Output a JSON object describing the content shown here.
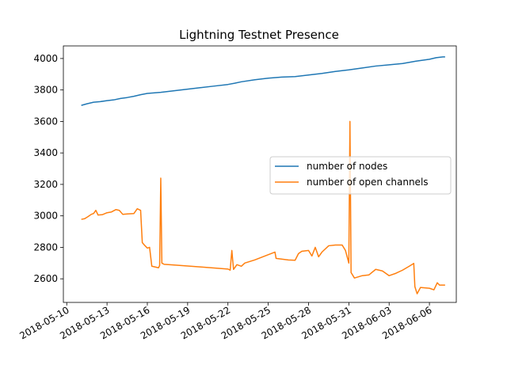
{
  "chart_data": {
    "type": "line",
    "title": "Lightning Testnet Presence",
    "xlabel": "",
    "ylabel": "",
    "x_type": "date",
    "xlim": [
      "2018-05-09 18:00",
      "2018-06-08 00:00"
    ],
    "ylim": [
      2450,
      4080
    ],
    "x_ticks": [
      "2018-05-10",
      "2018-05-13",
      "2018-05-16",
      "2018-05-19",
      "2018-05-22",
      "2018-05-25",
      "2018-05-28",
      "2018-05-31",
      "2018-06-03",
      "2018-06-06"
    ],
    "y_ticks": [
      2600,
      2800,
      3000,
      3200,
      3400,
      3600,
      3800,
      4000
    ],
    "grid": false,
    "legend_position": "center-right",
    "series": [
      {
        "name": "number of nodes",
        "color": "#1f77b4",
        "points": [
          [
            "2018-05-11 02:00",
            3702
          ],
          [
            "2018-05-11 12:00",
            3712
          ],
          [
            "2018-05-12 00:00",
            3722
          ],
          [
            "2018-05-12 12:00",
            3726
          ],
          [
            "2018-05-13 00:00",
            3732
          ],
          [
            "2018-05-13 12:00",
            3737
          ],
          [
            "2018-05-14 00:00",
            3746
          ],
          [
            "2018-05-14 12:00",
            3752
          ],
          [
            "2018-05-15 00:00",
            3760
          ],
          [
            "2018-05-15 12:00",
            3770
          ],
          [
            "2018-05-16 00:00",
            3778
          ],
          [
            "2018-05-17 00:00",
            3785
          ],
          [
            "2018-05-18 00:00",
            3795
          ],
          [
            "2018-05-19 00:00",
            3805
          ],
          [
            "2018-05-20 00:00",
            3815
          ],
          [
            "2018-05-21 00:00",
            3825
          ],
          [
            "2018-05-22 00:00",
            3835
          ],
          [
            "2018-05-22 12:00",
            3843
          ],
          [
            "2018-05-23 00:00",
            3852
          ],
          [
            "2018-05-24 00:00",
            3865
          ],
          [
            "2018-05-25 00:00",
            3875
          ],
          [
            "2018-05-26 00:00",
            3882
          ],
          [
            "2018-05-27 00:00",
            3885
          ],
          [
            "2018-05-28 00:00",
            3895
          ],
          [
            "2018-05-29 00:00",
            3905
          ],
          [
            "2018-05-30 00:00",
            3918
          ],
          [
            "2018-05-31 00:00",
            3928
          ],
          [
            "2018-06-01 00:00",
            3940
          ],
          [
            "2018-06-02 00:00",
            3952
          ],
          [
            "2018-06-03 00:00",
            3960
          ],
          [
            "2018-06-04 00:00",
            3968
          ],
          [
            "2018-06-05 00:00",
            3983
          ],
          [
            "2018-06-06 00:00",
            3995
          ],
          [
            "2018-06-06 12:00",
            4005
          ],
          [
            "2018-06-07 00:00",
            4010
          ],
          [
            "2018-06-07 04:00",
            4010
          ]
        ]
      },
      {
        "name": "number of open channels",
        "color": "#ff7f0e",
        "points": [
          [
            "2018-05-11 02:00",
            2978
          ],
          [
            "2018-05-11 08:00",
            2982
          ],
          [
            "2018-05-11 14:00",
            2995
          ],
          [
            "2018-05-11 20:00",
            3010
          ],
          [
            "2018-05-12 00:00",
            3015
          ],
          [
            "2018-05-12 04:00",
            3035
          ],
          [
            "2018-05-12 08:00",
            3005
          ],
          [
            "2018-05-12 16:00",
            3008
          ],
          [
            "2018-05-13 00:00",
            3020
          ],
          [
            "2018-05-13 08:00",
            3025
          ],
          [
            "2018-05-13 16:00",
            3040
          ],
          [
            "2018-05-13 22:00",
            3035
          ],
          [
            "2018-05-14 04:00",
            3010
          ],
          [
            "2018-05-14 12:00",
            3012
          ],
          [
            "2018-05-15 00:00",
            3015
          ],
          [
            "2018-05-15 06:00",
            3045
          ],
          [
            "2018-05-15 12:00",
            3035
          ],
          [
            "2018-05-15 15:00",
            2830
          ],
          [
            "2018-05-15 20:00",
            2810
          ],
          [
            "2018-05-16 00:00",
            2795
          ],
          [
            "2018-05-16 04:00",
            2800
          ],
          [
            "2018-05-16 08:00",
            2680
          ],
          [
            "2018-05-16 14:00",
            2675
          ],
          [
            "2018-05-16 20:00",
            2670
          ],
          [
            "2018-05-16 22:00",
            2685
          ],
          [
            "2018-05-17 00:00",
            3240
          ],
          [
            "2018-05-17 02:00",
            2700
          ],
          [
            "2018-05-17 06:00",
            2692
          ],
          [
            "2018-05-18 00:00",
            2688
          ],
          [
            "2018-05-20 00:00",
            2675
          ],
          [
            "2018-05-22 00:00",
            2662
          ],
          [
            "2018-05-22 04:00",
            2655
          ],
          [
            "2018-05-22 07:00",
            2780
          ],
          [
            "2018-05-22 10:00",
            2660
          ],
          [
            "2018-05-22 16:00",
            2690
          ],
          [
            "2018-05-23 00:00",
            2680
          ],
          [
            "2018-05-23 06:00",
            2700
          ],
          [
            "2018-05-24 00:00",
            2720
          ],
          [
            "2018-05-25 12:00",
            2770
          ],
          [
            "2018-05-25 14:00",
            2730
          ],
          [
            "2018-05-26 12:00",
            2720
          ],
          [
            "2018-05-27 00:00",
            2718
          ],
          [
            "2018-05-27 06:00",
            2760
          ],
          [
            "2018-05-27 12:00",
            2775
          ],
          [
            "2018-05-28 00:00",
            2780
          ],
          [
            "2018-05-28 06:00",
            2745
          ],
          [
            "2018-05-28 12:00",
            2800
          ],
          [
            "2018-05-28 18:00",
            2740
          ],
          [
            "2018-05-29 00:00",
            2770
          ],
          [
            "2018-05-29 12:00",
            2810
          ],
          [
            "2018-05-30 00:00",
            2815
          ],
          [
            "2018-05-30 12:00",
            2815
          ],
          [
            "2018-05-30 18:00",
            2780
          ],
          [
            "2018-05-31 00:00",
            2700
          ],
          [
            "2018-05-31 02:00",
            3600
          ],
          [
            "2018-05-31 04:00",
            2640
          ],
          [
            "2018-05-31 10:00",
            2605
          ],
          [
            "2018-06-01 00:00",
            2620
          ],
          [
            "2018-06-01 12:00",
            2625
          ],
          [
            "2018-06-02 00:00",
            2660
          ],
          [
            "2018-06-02 12:00",
            2650
          ],
          [
            "2018-06-03 00:00",
            2620
          ],
          [
            "2018-06-03 12:00",
            2635
          ],
          [
            "2018-06-04 00:00",
            2655
          ],
          [
            "2018-06-04 12:00",
            2680
          ],
          [
            "2018-06-04 20:00",
            2698
          ],
          [
            "2018-06-04 22:00",
            2550
          ],
          [
            "2018-06-05 02:00",
            2505
          ],
          [
            "2018-06-05 08:00",
            2545
          ],
          [
            "2018-06-06 00:00",
            2540
          ],
          [
            "2018-06-06 08:00",
            2530
          ],
          [
            "2018-06-06 14:00",
            2575
          ],
          [
            "2018-06-06 18:00",
            2560
          ],
          [
            "2018-06-07 04:00",
            2560
          ]
        ]
      }
    ]
  }
}
